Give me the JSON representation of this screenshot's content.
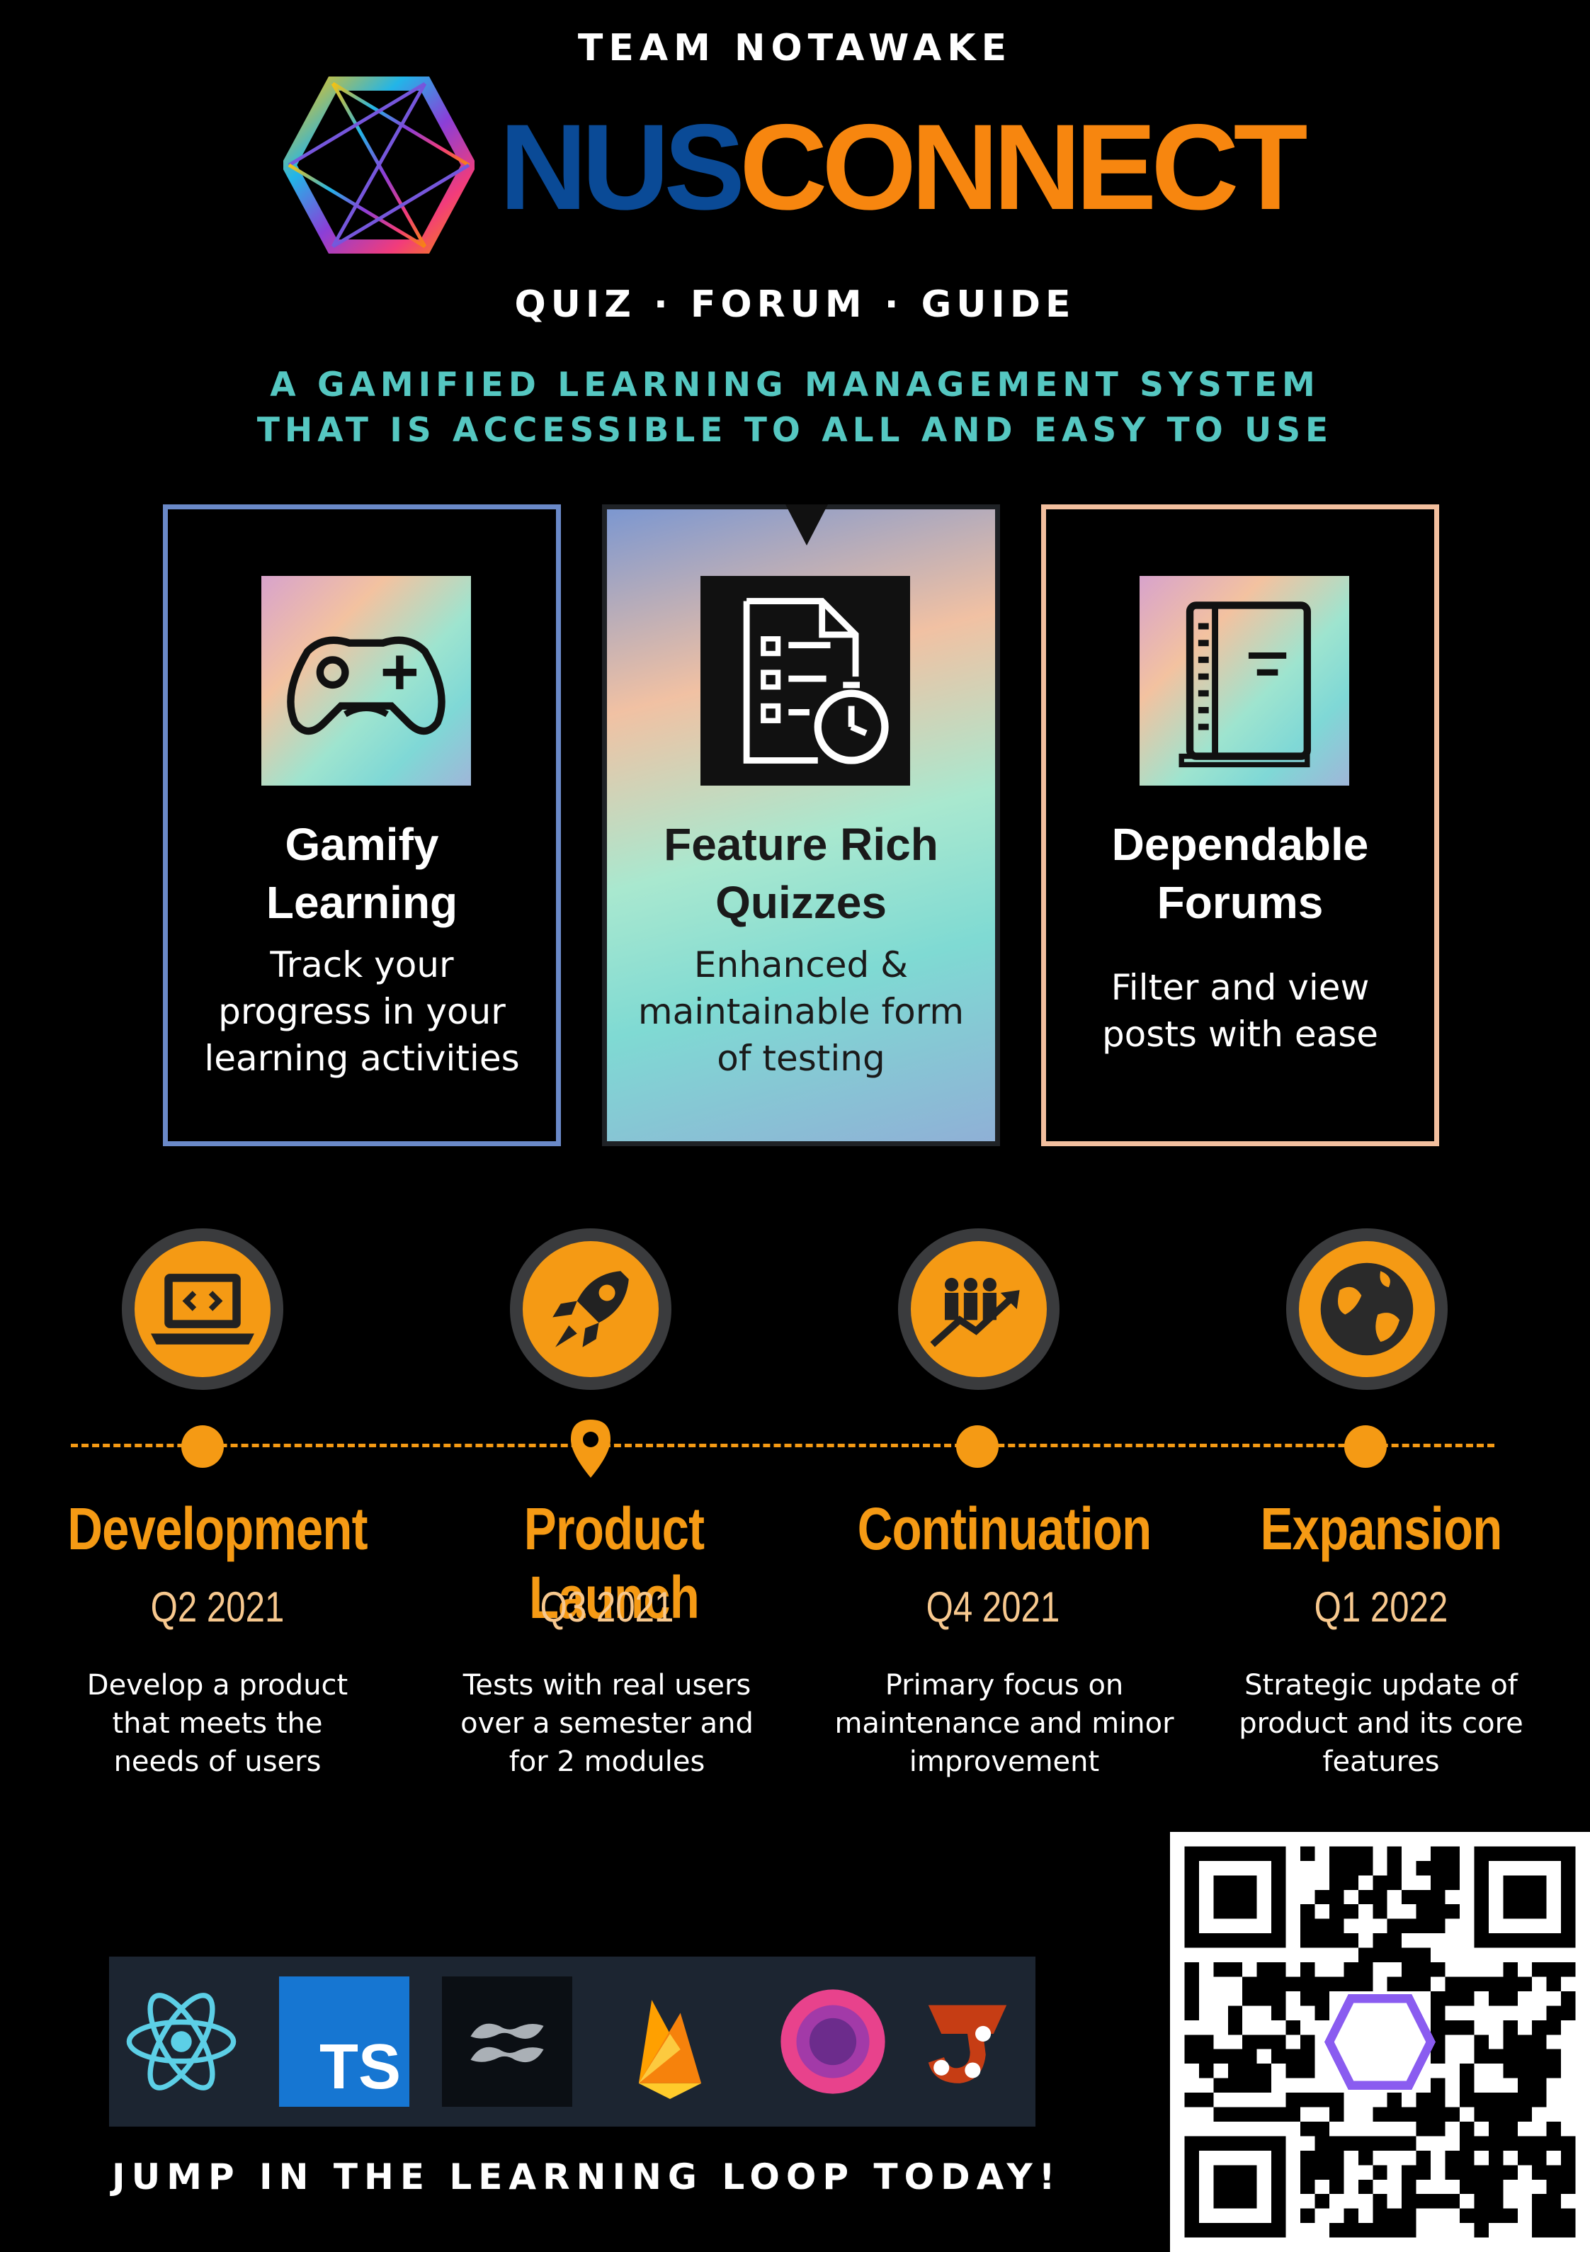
{
  "header": {
    "team": "TEAM NOTAWAKE",
    "logo_nus": "NUS",
    "logo_connect": "CONNECT",
    "sections": "QUIZ · FORUM · GUIDE",
    "tagline_line1": "A GAMIFIED LEARNING MANAGEMENT SYSTEM",
    "tagline_line2": "THAT IS ACCESSIBLE TO ALL AND EASY TO USE"
  },
  "colors": {
    "background": "#000000",
    "accent_orange": "#f59a14",
    "brand_blue": "#0a4a96",
    "tagline_teal": "#55c7c1",
    "card_blue_border": "#6a89c8",
    "card_peach_border": "#f2bf9e"
  },
  "features": [
    {
      "title_line1": "Gamify",
      "title_line2": "Learning",
      "desc_lines": [
        "Track your",
        "progress in your",
        "learning activities"
      ],
      "icon": "gamepad-icon"
    },
    {
      "title_line1": "Feature Rich",
      "title_line2": "Quizzes",
      "desc_lines": [
        "Enhanced &",
        "maintainable form",
        "of testing"
      ],
      "icon": "timed-checklist-icon"
    },
    {
      "title_line1": "Dependable",
      "title_line2": "Forums",
      "desc_lines": [
        "Filter and view",
        "posts with ease"
      ],
      "icon": "notebook-icon"
    }
  ],
  "timeline": [
    {
      "title": "Development",
      "date": "Q2 2021",
      "desc_lines": [
        "Develop a product",
        "that meets the",
        "needs of users"
      ],
      "icon": "laptop-code-icon"
    },
    {
      "title": "Product Launch",
      "date": "Q3 2021",
      "desc_lines": [
        "Tests with real users",
        "over a semester and",
        "for 2 modules"
      ],
      "icon": "rocket-icon"
    },
    {
      "title": "Continuation",
      "date": "Q4 2021",
      "desc_lines": [
        "Primary focus on",
        "maintenance and minor",
        "improvement"
      ],
      "icon": "team-growth-icon"
    },
    {
      "title": "Expansion",
      "date": "Q1 2022",
      "desc_lines": [
        "Strategic update of",
        "product and its core",
        "features"
      ],
      "icon": "globe-icon"
    }
  ],
  "tech_stack": {
    "items": [
      "react-logo",
      "typescript-logo",
      "tailwind-logo",
      "firebase-logo",
      "circle-logo",
      "jest-logo"
    ],
    "ts_label": "TS"
  },
  "footer": {
    "cta": "JUMP IN THE LEARNING LOOP TODAY!"
  }
}
